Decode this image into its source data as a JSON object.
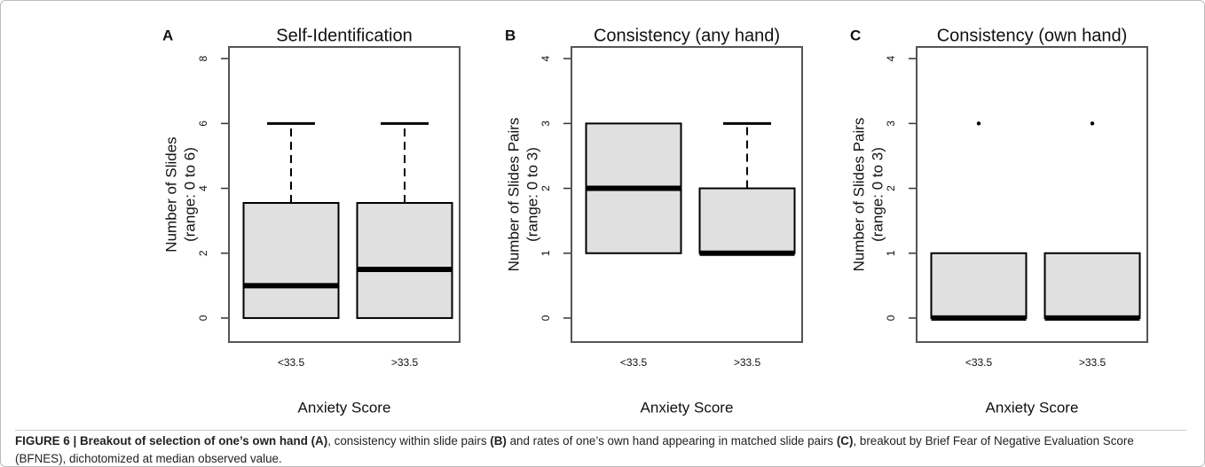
{
  "chart_data": [
    {
      "type": "box",
      "panel": "A",
      "title": "Self-Identification",
      "ylabel": [
        "Number of Slides",
        "(range: 0 to 6)"
      ],
      "xlabel": "Anxiety Score",
      "categories": [
        "<33.5",
        ">33.5"
      ],
      "boxes": [
        {
          "whislo": 0,
          "q1": 0,
          "med": 1,
          "q3": 3.55,
          "whishi": 6
        },
        {
          "whislo": 0,
          "q1": 0,
          "med": 1.5,
          "q3": 3.55,
          "whishi": 6
        }
      ],
      "ylim": [
        -0.74,
        8.36
      ],
      "yticks": [
        0,
        2,
        4,
        6,
        8
      ]
    },
    {
      "type": "box",
      "panel": "B",
      "title": "Consistency (any hand)",
      "ylabel": [
        "Number of Slides Pairs",
        "(range: 0 to 3)"
      ],
      "xlabel": "Anxiety Score",
      "categories": [
        "<33.5",
        ">33.5"
      ],
      "boxes": [
        {
          "whislo": 1,
          "q1": 1,
          "med": 2,
          "q3": 3,
          "whishi": 3
        },
        {
          "whislo": 1,
          "q1": 1,
          "med": 1,
          "q3": 2,
          "whishi": 3
        }
      ],
      "ylim": [
        -0.37,
        4.18
      ],
      "yticks": [
        0,
        1,
        2,
        3,
        4
      ]
    },
    {
      "type": "box",
      "panel": "C",
      "title": "Consistency (own hand)",
      "ylabel": [
        "Number of Slides Pairs",
        "(range: 0 to 3)"
      ],
      "xlabel": "Anxiety Score",
      "categories": [
        "<33.5",
        ">33.5"
      ],
      "boxes": [
        {
          "whislo": 0,
          "q1": 0,
          "med": 0,
          "q3": 1,
          "whishi": 1,
          "fliers": [
            3
          ]
        },
        {
          "whislo": 0,
          "q1": 0,
          "med": 0,
          "q3": 1,
          "whishi": 1,
          "fliers": [
            3
          ]
        }
      ],
      "ylim": [
        -0.37,
        4.18
      ],
      "yticks": [
        0,
        1,
        2,
        3,
        4
      ]
    }
  ],
  "caption": [
    {
      "text": "FIGURE 6 | Breakout of selection of one’s own hand (A)",
      "bold": true
    },
    {
      "text": ", consistency within slide pairs ",
      "bold": false
    },
    {
      "text": "(B)",
      "bold": true
    },
    {
      "text": " and rates of one’s own hand appearing in matched slide pairs ",
      "bold": false
    },
    {
      "text": "(C)",
      "bold": true
    },
    {
      "text": ", breakout by Brief Fear of Negative Evaluation Score (BFNES), dichotomized at median observed value.",
      "bold": false
    }
  ]
}
